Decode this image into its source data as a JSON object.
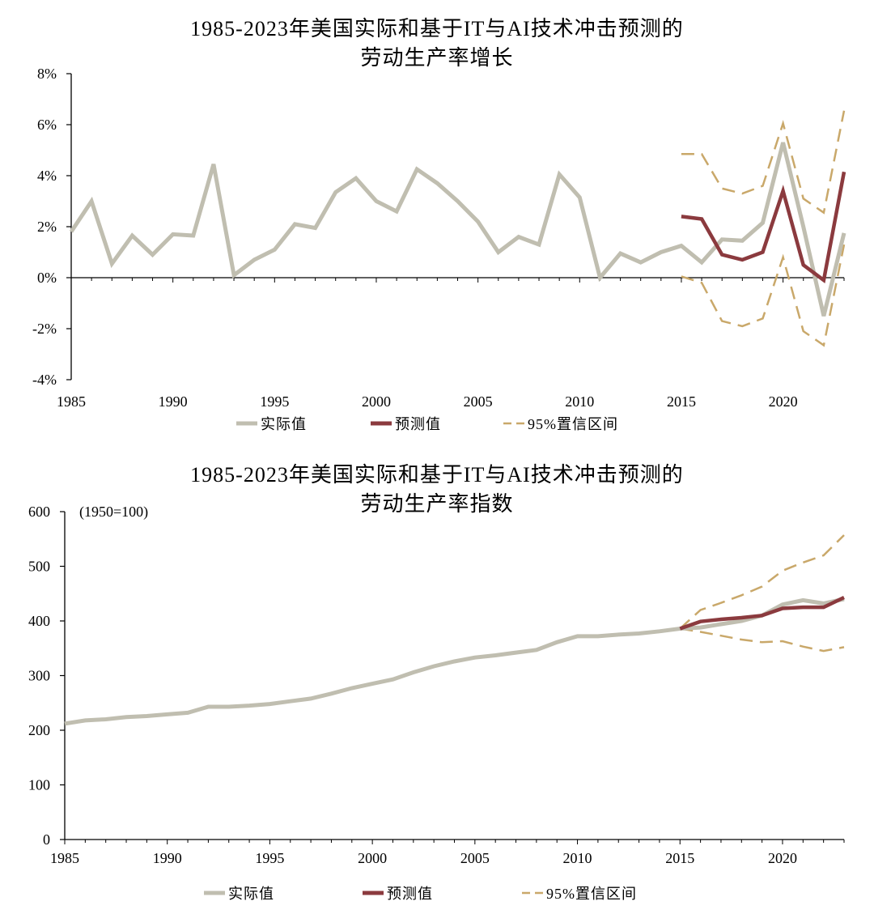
{
  "chart_data": [
    {
      "type": "line",
      "title": "1985-2023年美国实际和基于IT与AI技术冲击预测的",
      "subtitle": "劳动生产率增长",
      "xlabel": "",
      "ylabel": "",
      "xlim": [
        1985,
        2023
      ],
      "ylim": [
        -4,
        8
      ],
      "x_ticks": [
        "1985",
        "1990",
        "1995",
        "2000",
        "2005",
        "2010",
        "2015",
        "2020"
      ],
      "y_ticks": [
        "8%",
        "6%",
        "4%",
        "2%",
        "0%",
        "-2%",
        "-4%"
      ],
      "legend": [
        "实际值",
        "预测值",
        "95%置信区间"
      ],
      "legend_position": "bottom",
      "series": [
        {
          "name": "实际值",
          "color": "#c0beb0",
          "x": [
            1985,
            1986,
            1987,
            1988,
            1989,
            1990,
            1991,
            1992,
            1993,
            1994,
            1995,
            1996,
            1997,
            1998,
            1999,
            2000,
            2001,
            2002,
            2003,
            2004,
            2005,
            2006,
            2007,
            2008,
            2009,
            2010,
            2011,
            2012,
            2013,
            2014,
            2015,
            2016,
            2017,
            2018,
            2019,
            2020,
            2021,
            2022,
            2023
          ],
          "values": [
            1.8,
            3.0,
            0.55,
            1.65,
            0.9,
            1.7,
            1.65,
            4.45,
            0.1,
            0.7,
            1.1,
            2.1,
            1.95,
            3.35,
            3.9,
            3.0,
            2.6,
            4.25,
            3.7,
            3.0,
            2.2,
            1.0,
            1.6,
            1.3,
            4.05,
            3.15,
            0.0,
            0.95,
            0.6,
            1.0,
            1.25,
            0.6,
            1.5,
            1.45,
            2.15,
            5.3,
            2.0,
            -1.5,
            1.75
          ]
        },
        {
          "name": "预测值",
          "color": "#8b3a3e",
          "x": [
            2015,
            2016,
            2017,
            2018,
            2019,
            2020,
            2021,
            2022,
            2023
          ],
          "values": [
            2.4,
            2.3,
            0.9,
            0.7,
            1.0,
            3.4,
            0.5,
            -0.1,
            4.15
          ]
        },
        {
          "name": "95%置信区间",
          "color": "#c9a86a",
          "dashed": true,
          "x": [
            2015,
            2016,
            2017,
            2018,
            2019,
            2020,
            2021,
            2022,
            2023
          ],
          "values": [
            4.85,
            4.85,
            3.5,
            3.3,
            3.6,
            6.05,
            3.1,
            2.55,
            6.55
          ]
        },
        {
          "name": "95%置信区间",
          "color": "#c9a86a",
          "dashed": true,
          "x": [
            2015,
            2016,
            2017,
            2018,
            2019,
            2020,
            2021,
            2022,
            2023
          ],
          "values": [
            0.05,
            -0.2,
            -1.7,
            -1.9,
            -1.6,
            0.8,
            -2.1,
            -2.65,
            1.3
          ]
        }
      ]
    },
    {
      "type": "line",
      "title": "1985-2023年美国实际和基于IT与AI技术冲击预测的",
      "subtitle": "劳动生产率指数",
      "annotation": "(1950=100)",
      "xlabel": "",
      "ylabel": "",
      "xlim": [
        1985,
        2023
      ],
      "ylim": [
        0,
        600
      ],
      "x_ticks": [
        "1985",
        "1990",
        "1995",
        "2000",
        "2005",
        "2010",
        "2015",
        "2020"
      ],
      "y_ticks": [
        "600",
        "500",
        "400",
        "300",
        "200",
        "100",
        "0"
      ],
      "legend": [
        "实际值",
        "预测值",
        "95%置信区间"
      ],
      "legend_position": "bottom",
      "series": [
        {
          "name": "实际值",
          "color": "#c0beb0",
          "x": [
            1985,
            1986,
            1987,
            1988,
            1989,
            1990,
            1991,
            1992,
            1993,
            1994,
            1995,
            1996,
            1997,
            1998,
            1999,
            2000,
            2001,
            2002,
            2003,
            2004,
            2005,
            2006,
            2007,
            2008,
            2009,
            2010,
            2011,
            2012,
            2013,
            2014,
            2015,
            2016,
            2017,
            2018,
            2019,
            2020,
            2021,
            2022,
            2023
          ],
          "values": [
            212,
            218,
            220,
            224,
            226,
            229,
            232,
            243,
            243,
            245,
            248,
            253,
            258,
            267,
            277,
            285,
            293,
            306,
            317,
            326,
            333,
            337,
            342,
            347,
            361,
            372,
            372,
            375,
            377,
            381,
            386,
            388,
            394,
            400,
            410,
            430,
            438,
            432,
            440
          ]
        },
        {
          "name": "预测值",
          "color": "#8b3a3e",
          "x": [
            2015,
            2016,
            2017,
            2018,
            2019,
            2020,
            2021,
            2022,
            2023
          ],
          "values": [
            386,
            399,
            403,
            406,
            410,
            423,
            425,
            425,
            443
          ]
        },
        {
          "name": "95%置信区间",
          "color": "#c9a86a",
          "dashed": true,
          "x": [
            2015,
            2016,
            2017,
            2018,
            2019,
            2020,
            2021,
            2022,
            2023
          ],
          "values": [
            386,
            420,
            433,
            447,
            463,
            492,
            507,
            520,
            557
          ]
        },
        {
          "name": "95%置信区间",
          "color": "#c9a86a",
          "dashed": true,
          "x": [
            2015,
            2016,
            2017,
            2018,
            2019,
            2020,
            2021,
            2022,
            2023
          ],
          "values": [
            386,
            380,
            373,
            366,
            361,
            363,
            353,
            345,
            352
          ]
        }
      ]
    }
  ]
}
